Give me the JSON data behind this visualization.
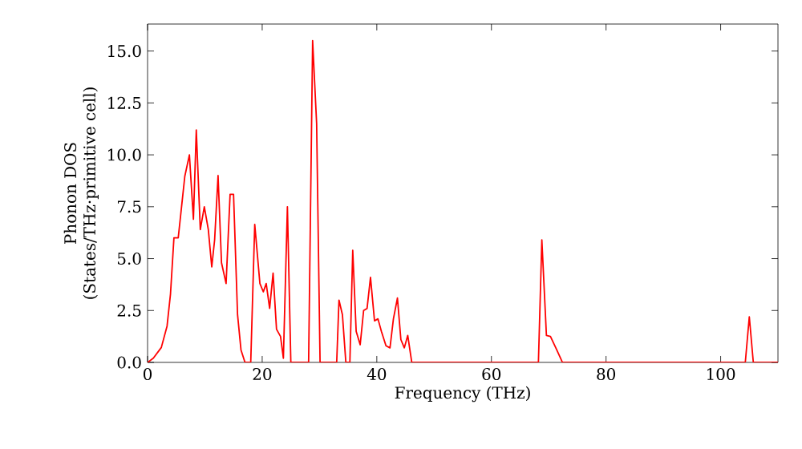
{
  "chart_data": {
    "type": "line",
    "xlabel": "Frequency (THz)",
    "ylabel": "Phonon DOS\n(States/THz·primitive cell)",
    "x": [
      0,
      1.0,
      2.4,
      3.4,
      4.0,
      4.6,
      5.35,
      6.5,
      7.3,
      8.0,
      8.5,
      9.2,
      9.9,
      10.6,
      11.2,
      11.7,
      12.3,
      12.9,
      13.7,
      14.4,
      15.0,
      15.7,
      16.3,
      17.0,
      18.0,
      18.7,
      19.6,
      20.2,
      20.7,
      21.3,
      21.9,
      22.5,
      23.2,
      23.7,
      24.4,
      25.0,
      28.1,
      28.8,
      29.5,
      30.1,
      33.0,
      33.4,
      34.0,
      34.6,
      35.3,
      35.8,
      36.4,
      37.1,
      37.7,
      38.3,
      38.9,
      39.6,
      40.2,
      40.8,
      41.6,
      42.3,
      42.9,
      43.6,
      44.2,
      44.8,
      45.4,
      46.1,
      68.2,
      68.8,
      69.6,
      70.3,
      71.4,
      72.4,
      104.3,
      105.0,
      105.7,
      110
    ],
    "series": [
      {
        "color": "#ff0000",
        "values": [
          0,
          0.2,
          0.72,
          1.75,
          3.3,
          6.0,
          6.0,
          8.97,
          10.0,
          6.9,
          11.2,
          6.4,
          7.5,
          6.4,
          4.6,
          5.9,
          9.0,
          4.8,
          3.8,
          8.1,
          8.1,
          2.3,
          0.6,
          0,
          0,
          6.65,
          3.8,
          3.4,
          3.8,
          2.6,
          4.3,
          1.6,
          1.25,
          0.2,
          7.5,
          0,
          0,
          15.5,
          11.5,
          0,
          0,
          3.0,
          2.3,
          0,
          0,
          5.4,
          1.5,
          0.85,
          2.5,
          2.6,
          4.1,
          2.0,
          2.1,
          1.5,
          0.8,
          0.7,
          2.1,
          3.1,
          1.1,
          0.7,
          1.3,
          0,
          0,
          5.9,
          1.3,
          1.25,
          0.6,
          0,
          0,
          2.2,
          0,
          0
        ]
      }
    ],
    "xlim": [
      0,
      110
    ],
    "ylim": [
      0,
      16.3
    ],
    "xticks": [
      0,
      20,
      40,
      60,
      80,
      100
    ],
    "yticks": [
      {
        "value": 0,
        "label": "0.0"
      },
      {
        "value": 2.5,
        "label": "2.5"
      },
      {
        "value": 5,
        "label": "5.0"
      },
      {
        "value": 7.5,
        "label": "7.5"
      },
      {
        "value": 10,
        "label": "10.0"
      },
      {
        "value": 12.5,
        "label": "12.5"
      },
      {
        "value": 15,
        "label": "15.0"
      }
    ],
    "marker": "none",
    "line_style": "solid"
  }
}
